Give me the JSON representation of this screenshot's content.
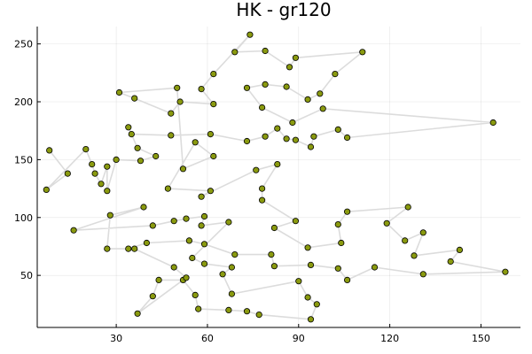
{
  "chart_data": {
    "type": "scatter",
    "title": "HK - gr120",
    "xlabel": "",
    "ylabel": "",
    "xlim": [
      4,
      163
    ],
    "ylim": [
      5,
      265
    ],
    "x_ticks": [
      30,
      60,
      90,
      120,
      150
    ],
    "y_ticks": [
      50,
      100,
      150,
      200,
      250
    ],
    "grid": true,
    "legend": "none",
    "marker_color": "#8a9a0f",
    "line_color": "#dcdcdc",
    "series": [
      {
        "points": [
          [
            8,
            158
          ],
          [
            14,
            138
          ],
          [
            7,
            124
          ],
          [
            20,
            159
          ],
          [
            22,
            146
          ],
          [
            23,
            138
          ],
          [
            25,
            129
          ],
          [
            27,
            144
          ],
          [
            27,
            123
          ],
          [
            30,
            150
          ],
          [
            38,
            149
          ],
          [
            43,
            153
          ],
          [
            37,
            160
          ],
          [
            34,
            178
          ],
          [
            35,
            172
          ],
          [
            48,
            171
          ],
          [
            61,
            172
          ],
          [
            73,
            166
          ],
          [
            79,
            170
          ],
          [
            83,
            177
          ],
          [
            86,
            168
          ],
          [
            89,
            167
          ],
          [
            94,
            161
          ],
          [
            95,
            170
          ],
          [
            103,
            176
          ],
          [
            106,
            169
          ],
          [
            154,
            182
          ],
          [
            98,
            194
          ],
          [
            88,
            182
          ],
          [
            78,
            195
          ],
          [
            73,
            212
          ],
          [
            79,
            215
          ],
          [
            86,
            213
          ],
          [
            93,
            202
          ],
          [
            97,
            207
          ],
          [
            102,
            224
          ],
          [
            111,
            243
          ],
          [
            89,
            238
          ],
          [
            87,
            230
          ],
          [
            79,
            244
          ],
          [
            69,
            243
          ],
          [
            74,
            258
          ],
          [
            62,
            224
          ],
          [
            58,
            211
          ],
          [
            62,
            198
          ],
          [
            51,
            200
          ],
          [
            48,
            190
          ],
          [
            36,
            203
          ],
          [
            31,
            208
          ],
          [
            50,
            212
          ],
          [
            52,
            142
          ],
          [
            62,
            153
          ],
          [
            56,
            165
          ],
          [
            47,
            125
          ],
          [
            61,
            123
          ],
          [
            58,
            118
          ],
          [
            76,
            141
          ],
          [
            83,
            146
          ],
          [
            78,
            125
          ],
          [
            78,
            115
          ],
          [
            89,
            97
          ],
          [
            82,
            91
          ],
          [
            93,
            74
          ],
          [
            104,
            78
          ],
          [
            103,
            94
          ],
          [
            106,
            105
          ],
          [
            126,
            109
          ],
          [
            119,
            95
          ],
          [
            125,
            80
          ],
          [
            131,
            87
          ],
          [
            128,
            67
          ],
          [
            143,
            72
          ],
          [
            140,
            62
          ],
          [
            158,
            53
          ],
          [
            131,
            51
          ],
          [
            115,
            57
          ],
          [
            106,
            46
          ],
          [
            103,
            56
          ],
          [
            94,
            59
          ],
          [
            82,
            58
          ],
          [
            81,
            68
          ],
          [
            69,
            68
          ],
          [
            59,
            77
          ],
          [
            54,
            80
          ],
          [
            40,
            78
          ],
          [
            34,
            73
          ],
          [
            27,
            73
          ],
          [
            28,
            102
          ],
          [
            39,
            109
          ],
          [
            16,
            89
          ],
          [
            42,
            93
          ],
          [
            49,
            97
          ],
          [
            53,
            99
          ],
          [
            59,
            101
          ],
          [
            58,
            93
          ],
          [
            67,
            96
          ],
          [
            55,
            65
          ],
          [
            59,
            60
          ],
          [
            68,
            57
          ],
          [
            65,
            51
          ],
          [
            68,
            34
          ],
          [
            90,
            45
          ],
          [
            93,
            31
          ],
          [
            96,
            25
          ],
          [
            94,
            12
          ],
          [
            77,
            16
          ],
          [
            73,
            19
          ],
          [
            67,
            20
          ],
          [
            57,
            21
          ],
          [
            56,
            33
          ],
          [
            52,
            46
          ],
          [
            44,
            46
          ],
          [
            42,
            32
          ],
          [
            37,
            17
          ],
          [
            53,
            48
          ],
          [
            49,
            57
          ],
          [
            36,
            73
          ]
        ]
      }
    ]
  }
}
